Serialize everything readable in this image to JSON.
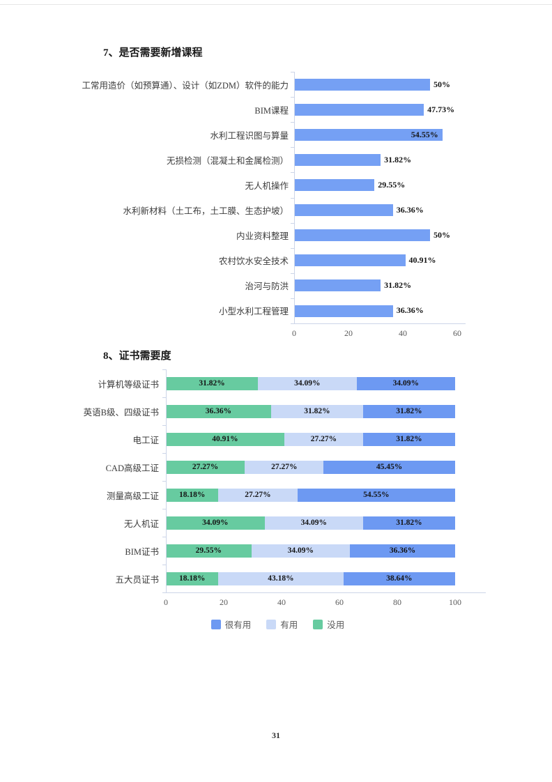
{
  "page": {
    "number": "31"
  },
  "sections": {
    "q7_title": "7、是否需要新增课程",
    "q8_title": "8、证书需要度"
  },
  "colors": {
    "bar_blue": "#75A0F4",
    "very_useful_blue": "#6D99F2",
    "useful_light_blue": "#C9D9F7",
    "useless_green": "#67CBA0",
    "axis_line": "#ccd5e8"
  },
  "chart_data": [
    {
      "type": "bar",
      "orientation": "horizontal",
      "title": "7、是否需要新增课程",
      "categories": [
        "工常用造价（如预算通）、设计（如ZDM）软件的能力",
        "BIM课程",
        "水利工程识图与算量",
        "无损检测（混凝土和金属检测）",
        "无人机操作",
        "水利新材料（土工布，土工膜、生态护坡）",
        "内业资料整理",
        "农村饮水安全技术",
        "治河与防洪",
        "小型水利工程管理"
      ],
      "values": [
        50,
        47.73,
        54.55,
        31.82,
        29.55,
        36.36,
        50,
        40.91,
        31.82,
        36.36
      ],
      "value_labels": [
        "50%",
        "47.73%",
        "54.55%",
        "31.82%",
        "29.55%",
        "36.36%",
        "50%",
        "40.91%",
        "31.82%",
        "36.36%"
      ],
      "xlim": [
        0,
        60
      ],
      "xticks": [
        0,
        20,
        40,
        60
      ],
      "bar_color": "#75A0F4",
      "grid": false,
      "legend_position": "none"
    },
    {
      "type": "bar",
      "orientation": "horizontal",
      "stacked": true,
      "title": "8、证书需要度",
      "categories": [
        "计算机等级证书",
        "英语B级、四级证书",
        "电工证",
        "CAD高级工证",
        "测量高级工证",
        "无人机证",
        "BIM证书",
        "五大员证书"
      ],
      "series": [
        {
          "name": "没用",
          "color": "#67CBA0",
          "values": [
            31.82,
            36.36,
            40.91,
            27.27,
            18.18,
            34.09,
            29.55,
            18.18
          ],
          "value_labels": [
            "31.82%",
            "36.36%",
            "40.91%",
            "27.27%",
            "18.18%",
            "34.09%",
            "29.55%",
            "18.18%"
          ]
        },
        {
          "name": "有用",
          "color": "#C9D9F7",
          "values": [
            34.09,
            31.82,
            27.27,
            27.27,
            27.27,
            34.09,
            34.09,
            43.18
          ],
          "value_labels": [
            "34.09%",
            "31.82%",
            "27.27%",
            "27.27%",
            "27.27%",
            "34.09%",
            "34.09%",
            "43.18%"
          ]
        },
        {
          "name": "很有用",
          "color": "#6D99F2",
          "values": [
            34.09,
            31.82,
            31.82,
            45.45,
            54.55,
            31.82,
            36.36,
            38.64
          ],
          "value_labels": [
            "34.09%",
            "31.82%",
            "31.82%",
            "45.45%",
            "54.55%",
            "31.82%",
            "36.36%",
            "38.64%"
          ]
        }
      ],
      "legend": [
        {
          "label": "很有用",
          "color": "#6D99F2"
        },
        {
          "label": "有用",
          "color": "#C9D9F7"
        },
        {
          "label": "没用",
          "color": "#67CBA0"
        }
      ],
      "xlim": [
        0,
        100
      ],
      "xticks": [
        0,
        20,
        40,
        60,
        80,
        100
      ],
      "grid": false,
      "legend_position": "bottom"
    }
  ]
}
